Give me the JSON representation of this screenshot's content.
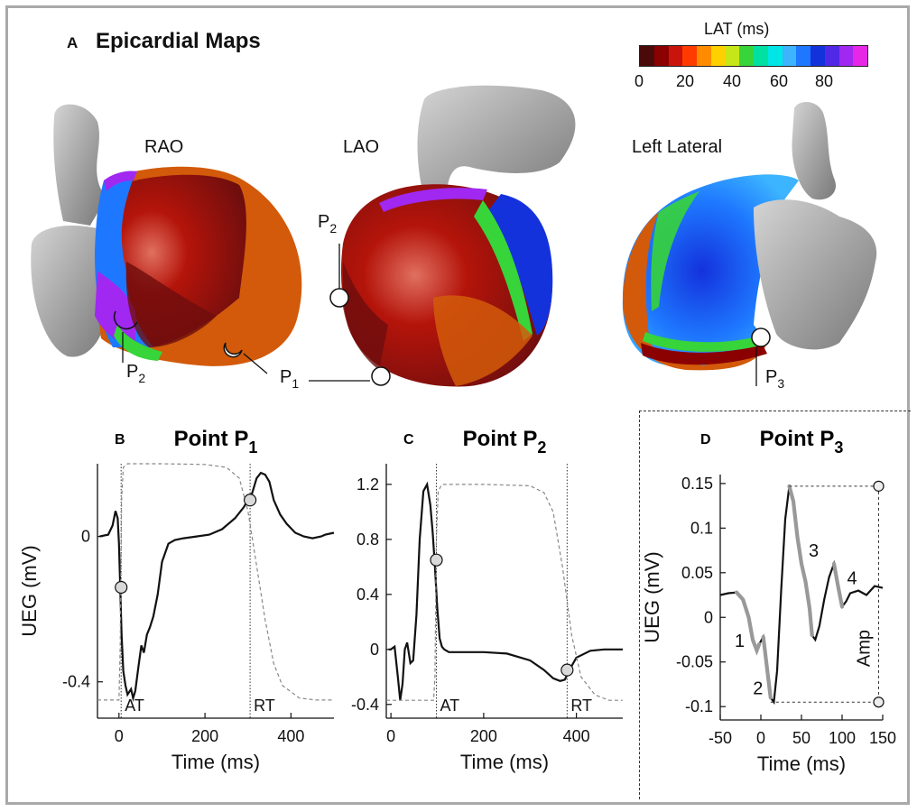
{
  "panel_a": {
    "letter": "A",
    "title": "Epicardial Maps",
    "views": [
      "RAO",
      "LAO",
      "Left Lateral"
    ],
    "point_labels": {
      "rao_p2": {
        "main": "P",
        "sub": "2"
      },
      "rao_p1": {
        "main": "P",
        "sub": "1"
      },
      "lao_p2": {
        "main": "P",
        "sub": "2"
      },
      "lat_p3": {
        "main": "P",
        "sub": "3"
      }
    },
    "colorbar": {
      "title": "LAT (ms)",
      "ticks": [
        "0",
        "20",
        "40",
        "60",
        "80"
      ],
      "colors": [
        "#4a0a0a",
        "#8b0000",
        "#c8140a",
        "#ff3b00",
        "#ff8c00",
        "#ffd000",
        "#c6e61a",
        "#37d43a",
        "#00e0a0",
        "#00e6e6",
        "#3cb4ff",
        "#1e78ff",
        "#1432dc",
        "#5028e6",
        "#a028f0",
        "#e628e6"
      ]
    },
    "heart_colors": {
      "gray": "#a9a9a9",
      "dark_red": "#6e0e0e",
      "red": "#b4140a",
      "orange": "#d25a0a",
      "blue": "#1e5ad2",
      "purple": "#a028f0"
    }
  },
  "chart_data": [
    {
      "type": "line",
      "panel_letter": "B",
      "title_main": "Point P",
      "title_sub": "1",
      "xlabel": "Time (ms)",
      "ylabel": "UEG (mV)",
      "xlim": [
        -50,
        500
      ],
      "ylim": [
        -0.5,
        0.2
      ],
      "xticks": [
        0,
        200,
        400
      ],
      "yticks": [
        -0.4,
        0
      ],
      "ytick_labels": [
        "-0.4",
        "0"
      ],
      "series": [
        {
          "style": "solid",
          "x": [
            -45,
            -25,
            -15,
            -8,
            -3,
            0,
            3,
            6,
            10,
            15,
            20,
            28,
            33,
            38,
            45,
            52,
            58,
            65,
            72,
            80,
            90,
            100,
            115,
            130,
            150,
            180,
            210,
            240,
            270,
            290,
            300,
            310,
            320,
            330,
            340,
            350,
            360,
            375,
            390,
            410,
            430,
            450,
            470,
            480,
            500
          ],
          "y": [
            0.0,
            0.005,
            0.03,
            0.07,
            0.05,
            -0.02,
            -0.14,
            -0.27,
            -0.37,
            -0.41,
            -0.435,
            -0.42,
            -0.445,
            -0.425,
            -0.36,
            -0.3,
            -0.32,
            -0.27,
            -0.25,
            -0.22,
            -0.16,
            -0.07,
            -0.02,
            -0.01,
            -0.005,
            0.0,
            0.005,
            0.02,
            0.05,
            0.08,
            0.1,
            0.12,
            0.16,
            0.175,
            0.17,
            0.15,
            0.1,
            0.06,
            0.035,
            0.01,
            0.0,
            -0.005,
            0.0,
            0.005,
            0.01
          ]
        },
        {
          "style": "dashed",
          "x": [
            -50,
            0,
            3,
            6,
            10,
            20,
            100,
            200,
            250,
            280,
            300,
            320,
            340,
            360,
            380,
            420,
            460,
            500
          ],
          "y": [
            -0.45,
            -0.45,
            -0.3,
            0.1,
            0.19,
            0.2,
            0.2,
            0.198,
            0.19,
            0.16,
            0.07,
            -0.08,
            -0.23,
            -0.35,
            -0.41,
            -0.445,
            -0.45,
            -0.45
          ]
        }
      ],
      "markers": [
        {
          "x": 5,
          "y": -0.14,
          "label": "AT"
        },
        {
          "x": 305,
          "y": 0.1,
          "label": "RT"
        }
      ],
      "vlines": [
        {
          "x": 5,
          "label": "AT"
        },
        {
          "x": 305,
          "label": "RT"
        }
      ]
    },
    {
      "type": "line",
      "panel_letter": "C",
      "title_main": "Point P",
      "title_sub": "2",
      "xlabel": "Time (ms)",
      "ylabel": "",
      "xlim": [
        -10,
        500
      ],
      "ylim": [
        -0.5,
        1.35
      ],
      "xticks": [
        0,
        200,
        400
      ],
      "yticks": [
        -0.4,
        0,
        0.4,
        0.8,
        1.2
      ],
      "ytick_labels": [
        "-0.4",
        "0",
        "0.4",
        "0.8",
        "1.2"
      ],
      "series": [
        {
          "style": "solid",
          "x": [
            -5,
            0,
            8,
            15,
            20,
            25,
            30,
            35,
            42,
            48,
            55,
            62,
            70,
            78,
            85,
            90,
            95,
            100,
            105,
            110,
            115,
            125,
            145,
            200,
            250,
            300,
            330,
            350,
            365,
            375,
            385,
            400,
            430,
            460,
            500
          ],
          "y": [
            0.0,
            0.0,
            0.02,
            -0.2,
            -0.37,
            -0.25,
            0.0,
            0.05,
            -0.1,
            -0.08,
            0.25,
            0.8,
            1.15,
            1.2,
            1.05,
            0.85,
            0.6,
            0.3,
            0.08,
            0.02,
            0.0,
            -0.02,
            -0.02,
            -0.02,
            -0.03,
            -0.08,
            -0.15,
            -0.21,
            -0.23,
            -0.22,
            -0.15,
            -0.06,
            -0.01,
            0.0,
            0.0
          ]
        },
        {
          "style": "dashed",
          "x": [
            -10,
            92,
            95,
            98,
            102,
            110,
            200,
            300,
            330,
            350,
            370,
            390,
            410,
            440,
            470,
            500
          ],
          "y": [
            -0.37,
            -0.37,
            -0.2,
            0.8,
            1.15,
            1.2,
            1.2,
            1.19,
            1.14,
            1.0,
            0.6,
            0.1,
            -0.2,
            -0.33,
            -0.37,
            -0.37
          ]
        }
      ],
      "markers": [
        {
          "x": 98,
          "y": 0.65,
          "label": "AT"
        },
        {
          "x": 380,
          "y": -0.15,
          "label": "RT"
        }
      ],
      "vlines": [
        {
          "x": 98,
          "label": "AT"
        },
        {
          "x": 380,
          "label": "RT"
        }
      ]
    },
    {
      "type": "line",
      "panel_letter": "D",
      "title_main": "Point P",
      "title_sub": "3",
      "xlabel": "Time (ms)",
      "ylabel": "UEG (mV)",
      "xlim": [
        -50,
        150
      ],
      "ylim": [
        -0.115,
        0.16
      ],
      "xticks": [
        -50,
        0,
        50,
        100,
        150
      ],
      "yticks": [
        -0.1,
        -0.05,
        0,
        0.05,
        0.1,
        0.15
      ],
      "ytick_labels": [
        "-0.1",
        "-0.05",
        "0",
        "0.05",
        "0.1",
        "0.15"
      ],
      "series": [
        {
          "style": "solid",
          "x": [
            -50,
            -40,
            -30,
            -22,
            -15,
            -10,
            -5,
            -2,
            3,
            8,
            12,
            16,
            20,
            25,
            30,
            35,
            40,
            45,
            50,
            55,
            60,
            63,
            67,
            72,
            78,
            84,
            90,
            95,
            100,
            105,
            110,
            120,
            130,
            140,
            150
          ],
          "y": [
            0.025,
            0.027,
            0.028,
            0.02,
            0.0,
            -0.025,
            -0.037,
            -0.03,
            -0.022,
            -0.06,
            -0.09,
            -0.095,
            -0.06,
            0.03,
            0.11,
            0.147,
            0.13,
            0.09,
            0.06,
            0.04,
            0.01,
            -0.02,
            -0.025,
            -0.01,
            0.02,
            0.045,
            0.06,
            0.035,
            0.012,
            0.018,
            0.027,
            0.03,
            0.025,
            0.035,
            0.033
          ]
        }
      ],
      "highlight_segments": [
        {
          "label": "1",
          "x": [
            -30,
            -22,
            -15,
            -10,
            -5,
            -2
          ],
          "y": [
            0.028,
            0.02,
            0.0,
            -0.025,
            -0.037,
            -0.03
          ]
        },
        {
          "label": "2",
          "x": [
            3,
            8,
            12
          ],
          "y": [
            -0.022,
            -0.06,
            -0.09
          ]
        },
        {
          "label": "3",
          "x": [
            35,
            40,
            45,
            50,
            55,
            60,
            63
          ],
          "y": [
            0.147,
            0.13,
            0.09,
            0.06,
            0.04,
            0.01,
            -0.02
          ]
        },
        {
          "label": "4",
          "x": [
            90,
            95,
            100
          ],
          "y": [
            0.06,
            0.035,
            0.012
          ]
        }
      ],
      "amp": {
        "label": "Amp",
        "x": 145,
        "max_y": 0.147,
        "min_y": -0.095
      }
    }
  ]
}
